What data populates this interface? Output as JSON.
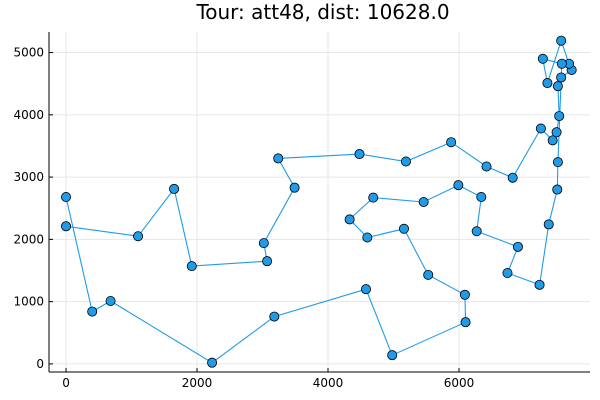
{
  "chart_data": {
    "type": "line",
    "title": "Tour: att48, dist: 10628.0",
    "xlabel": "",
    "ylabel": "",
    "xlim": [
      -260,
      8000
    ],
    "ylim": [
      -130,
      5330
    ],
    "x_ticks": [
      0,
      2000,
      4000,
      6000
    ],
    "y_ticks": [
      0,
      1000,
      2000,
      3000,
      4000,
      5000
    ],
    "grid": true,
    "legend": "none",
    "colors": {
      "series": "#1f9bea",
      "marker_edge": "#000000",
      "grid": "#e6e6e6"
    },
    "series": [
      {
        "x": [
          0,
          1100,
          1650,
          1920,
          3070,
          3020,
          3490,
          3240,
          4480,
          5190,
          5880,
          6420,
          6820,
          7250,
          7430,
          7490,
          7530,
          7510,
          7560,
          7720,
          7680,
          7560,
          7350,
          7280,
          7570,
          7510,
          7500,
          7370,
          7230,
          6740,
          6900,
          6270,
          6340,
          5990,
          5460,
          4690,
          4330,
          4600,
          5160,
          5530,
          6090,
          6100,
          4980,
          4580,
          3180,
          2230,
          680,
          400,
          0
        ],
        "y": [
          2210,
          2050,
          2810,
          1570,
          1650,
          1940,
          2830,
          3300,
          3370,
          3250,
          3560,
          3170,
          2990,
          3780,
          3590,
          3720,
          3980,
          4460,
          4600,
          4720,
          4820,
          5190,
          4510,
          4900,
          4820,
          3240,
          2800,
          2240,
          1270,
          1460,
          1880,
          2130,
          2680,
          2870,
          2600,
          2670,
          2320,
          2030,
          2170,
          1430,
          1110,
          670,
          140,
          1200,
          760,
          20,
          1010,
          840,
          2680
        ]
      }
    ]
  }
}
